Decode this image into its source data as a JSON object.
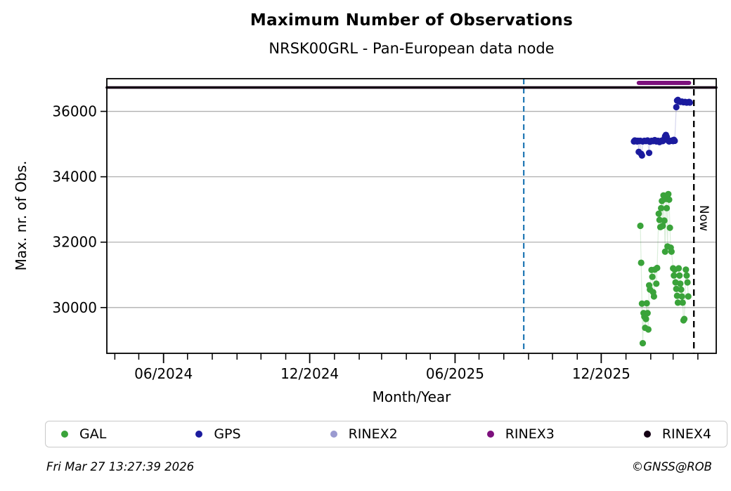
{
  "header": {
    "title": "Maximum Number of Observations",
    "subtitle": "NRSK00GRL - Pan-European data node"
  },
  "footer": {
    "generated": "Fri Mar 27 13:27:39 2026",
    "copyright": "©GNSS@ROB"
  },
  "legend": {
    "items": [
      {
        "label": "GAL",
        "color": "#3aa33a"
      },
      {
        "label": "GPS",
        "color": "#1b1b9e"
      },
      {
        "label": "RINEX2",
        "color": "#9a9ad0"
      },
      {
        "label": "RINEX3",
        "color": "#7d107d"
      },
      {
        "label": "RINEX4",
        "color": "#140014"
      }
    ]
  },
  "chart_data": {
    "type": "scatter",
    "title": "Maximum Number of Observations",
    "subtitle": "NRSK00GRL - Pan-European data node",
    "xlabel": "Month/Year",
    "ylabel": "Max. nr. of Obs.",
    "x_range": [
      "2024-03-22",
      "2026-04-24"
    ],
    "ylim": [
      28600,
      37000
    ],
    "y_ticks": [
      30000,
      32000,
      34000,
      36000
    ],
    "x_major_ticks": [
      {
        "date": "2024-06-01",
        "label": "06/2024"
      },
      {
        "date": "2024-12-01",
        "label": "12/2024"
      },
      {
        "date": "2025-06-01",
        "label": "06/2025"
      },
      {
        "date": "2025-12-01",
        "label": "12/2025"
      }
    ],
    "x_minor_tick_interval": "month",
    "grid": "horizontal",
    "legend_position": "bottom",
    "annotations": {
      "marker_line_blue": {
        "date": "2025-08-26",
        "style": "dashed",
        "color": "#1f77b4"
      },
      "now_line": {
        "date": "2026-03-27",
        "label": "Now",
        "style": "dashed",
        "color": "#000000"
      }
    },
    "series": [
      {
        "name": "GAL",
        "color": "#3aa33a",
        "type": "scatter",
        "points": [
          [
            "2026-01-19",
            32500
          ],
          [
            "2026-01-20",
            31370
          ],
          [
            "2026-01-21",
            30120
          ],
          [
            "2026-01-22",
            28910
          ],
          [
            "2026-01-23",
            29830
          ],
          [
            "2026-01-24",
            29720
          ],
          [
            "2026-01-25",
            29380
          ],
          [
            "2026-01-26",
            29650
          ],
          [
            "2026-01-27",
            30130
          ],
          [
            "2026-01-28",
            29830
          ],
          [
            "2026-01-29",
            29330
          ],
          [
            "2026-01-30",
            30680
          ],
          [
            "2026-01-31",
            30550
          ],
          [
            "2026-02-02",
            31150
          ],
          [
            "2026-02-03",
            30940
          ],
          [
            "2026-02-04",
            30470
          ],
          [
            "2026-02-05",
            30340
          ],
          [
            "2026-02-06",
            31160
          ],
          [
            "2026-02-08",
            30730
          ],
          [
            "2026-02-09",
            31210
          ],
          [
            "2026-02-11",
            32870
          ],
          [
            "2026-02-12",
            32680
          ],
          [
            "2026-02-13",
            32460
          ],
          [
            "2026-02-14",
            33040
          ],
          [
            "2026-02-15",
            33260
          ],
          [
            "2026-02-16",
            32500
          ],
          [
            "2026-02-17",
            33430
          ],
          [
            "2026-02-18",
            32660
          ],
          [
            "2026-02-19",
            31710
          ],
          [
            "2026-02-20",
            33320
          ],
          [
            "2026-02-21",
            33040
          ],
          [
            "2026-02-22",
            31870
          ],
          [
            "2026-02-23",
            33470
          ],
          [
            "2026-02-24",
            33300
          ],
          [
            "2026-02-25",
            32440
          ],
          [
            "2026-02-26",
            31830
          ],
          [
            "2026-02-27",
            31710
          ],
          [
            "2026-03-01",
            31200
          ],
          [
            "2026-03-02",
            30980
          ],
          [
            "2026-03-03",
            31160
          ],
          [
            "2026-03-04",
            30770
          ],
          [
            "2026-03-05",
            30570
          ],
          [
            "2026-03-06",
            30360
          ],
          [
            "2026-03-07",
            30150
          ],
          [
            "2026-03-08",
            31200
          ],
          [
            "2026-03-09",
            30980
          ],
          [
            "2026-03-10",
            30730
          ],
          [
            "2026-03-11",
            30550
          ],
          [
            "2026-03-12",
            30340
          ],
          [
            "2026-03-13",
            30150
          ],
          [
            "2026-03-14",
            29610
          ],
          [
            "2026-03-15",
            29650
          ],
          [
            "2026-03-17",
            31160
          ],
          [
            "2026-03-18",
            30980
          ],
          [
            "2026-03-19",
            30770
          ],
          [
            "2026-03-20",
            30340
          ]
        ]
      },
      {
        "name": "GPS",
        "color": "#1b1b9e",
        "type": "scatter",
        "points": [
          [
            "2026-01-11",
            35080
          ],
          [
            "2026-01-12",
            35110
          ],
          [
            "2026-01-13",
            35090
          ],
          [
            "2026-01-14",
            35100
          ],
          [
            "2026-01-15",
            35080
          ],
          [
            "2026-01-16",
            35100
          ],
          [
            "2026-01-17",
            34760
          ],
          [
            "2026-01-18",
            35090
          ],
          [
            "2026-01-19",
            35100
          ],
          [
            "2026-01-20",
            34700
          ],
          [
            "2026-01-21",
            34650
          ],
          [
            "2026-01-22",
            35080
          ],
          [
            "2026-01-24",
            35100
          ],
          [
            "2026-01-26",
            35090
          ],
          [
            "2026-01-28",
            35110
          ],
          [
            "2026-01-30",
            34730
          ],
          [
            "2026-01-31",
            35070
          ],
          [
            "2026-02-02",
            35100
          ],
          [
            "2026-02-04",
            35090
          ],
          [
            "2026-02-06",
            35120
          ],
          [
            "2026-02-08",
            35080
          ],
          [
            "2026-02-10",
            35100
          ],
          [
            "2026-02-12",
            35060
          ],
          [
            "2026-02-14",
            35100
          ],
          [
            "2026-02-16",
            35090
          ],
          [
            "2026-02-18",
            35160
          ],
          [
            "2026-02-19",
            35240
          ],
          [
            "2026-02-20",
            35280
          ],
          [
            "2026-02-21",
            35220
          ],
          [
            "2026-02-22",
            35120
          ],
          [
            "2026-02-24",
            35080
          ],
          [
            "2026-02-26",
            35100
          ],
          [
            "2026-02-28",
            35110
          ],
          [
            "2026-03-01",
            35090
          ],
          [
            "2026-03-02",
            35130
          ],
          [
            "2026-03-03",
            35100
          ],
          [
            "2026-03-05",
            36130
          ],
          [
            "2026-03-06",
            36330
          ],
          [
            "2026-03-07",
            36350
          ],
          [
            "2026-03-08",
            36310
          ],
          [
            "2026-03-10",
            36290
          ],
          [
            "2026-03-12",
            36300
          ],
          [
            "2026-03-14",
            36280
          ],
          [
            "2026-03-16",
            36290
          ],
          [
            "2026-03-18",
            36270
          ],
          [
            "2026-03-20",
            36280
          ],
          [
            "2026-03-21",
            36290
          ],
          [
            "2026-03-22",
            36270
          ]
        ]
      },
      {
        "name": "RINEX2",
        "color": "#9a9ad0",
        "type": "line",
        "points": []
      },
      {
        "name": "RINEX3",
        "color": "#7d107d",
        "type": "line",
        "line_width": 6,
        "points": [
          [
            "2026-01-17",
            36870
          ],
          [
            "2026-03-21",
            36870
          ]
        ]
      },
      {
        "name": "RINEX4",
        "color": "#140014",
        "type": "line",
        "line_width": 3.6,
        "points": [
          [
            "2024-03-22",
            36730
          ],
          [
            "2026-04-24",
            36730
          ]
        ]
      }
    ]
  }
}
